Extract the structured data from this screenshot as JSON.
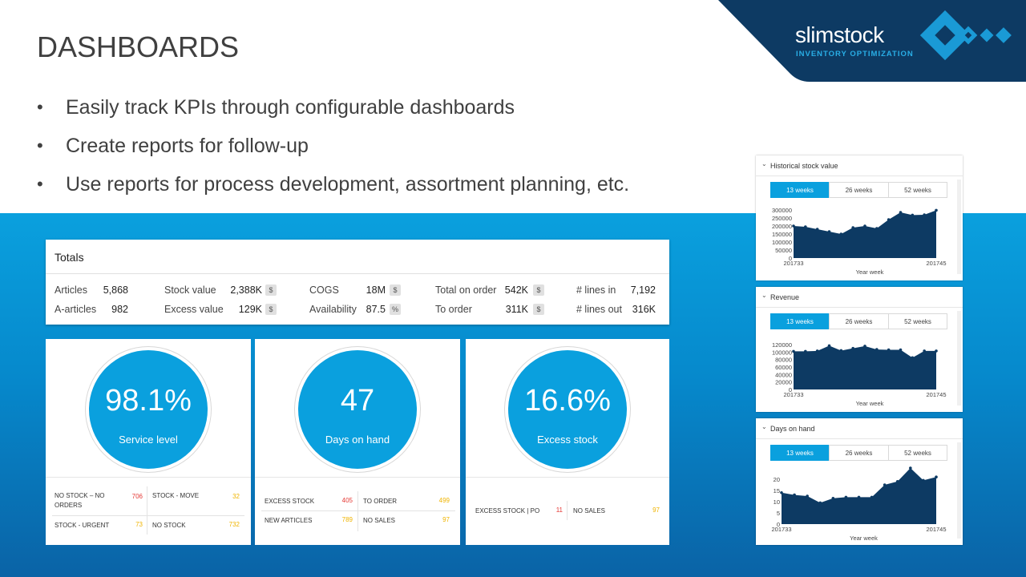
{
  "slide": {
    "title": "DASHBOARDS",
    "bullets": [
      "Easily track KPIs through configurable dashboards",
      "Create reports for follow-up",
      "Use reports for process development, assortment planning, etc."
    ]
  },
  "logo": {
    "name": "slimstock",
    "tagline": "INVENTORY OPTIMIZATION"
  },
  "colors": {
    "accent": "#0aa0de",
    "navy": "#0d3a63",
    "chart_fill": "#0d3a63",
    "red": "#e53935",
    "yellow": "#f0b400"
  },
  "totals": {
    "title": "Totals",
    "items": [
      {
        "label": "Articles",
        "value": "5,868",
        "unit": ""
      },
      {
        "label": "A-articles",
        "value": "982",
        "unit": ""
      },
      {
        "label": "Stock value",
        "value": "2,388K",
        "unit": "$"
      },
      {
        "label": "Excess value",
        "value": "129K",
        "unit": "$"
      },
      {
        "label": "COGS",
        "value": "18M",
        "unit": "$"
      },
      {
        "label": "Availability",
        "value": "87.5",
        "unit": "%"
      },
      {
        "label": "Total on order",
        "value": "542K",
        "unit": "$"
      },
      {
        "label": "To order",
        "value": "311K",
        "unit": "$"
      },
      {
        "label": "# lines in",
        "value": "7,192",
        "unit": ""
      },
      {
        "label": "# lines out",
        "value": "316K",
        "unit": ""
      }
    ]
  },
  "kpis": [
    {
      "value": "98.1%",
      "label": "Service level",
      "stats": [
        {
          "label": "NO STOCK – NO ORDERS",
          "value": "706",
          "color": "red"
        },
        {
          "label": "STOCK - MOVE",
          "value": "32",
          "color": "yellow"
        },
        {
          "label": "STOCK - URGENT",
          "value": "73",
          "color": "yellow"
        },
        {
          "label": "NO STOCK",
          "value": "732",
          "color": "yellow"
        }
      ]
    },
    {
      "value": "47",
      "label": "Days on hand",
      "stats": [
        {
          "label": "EXCESS STOCK",
          "value": "405",
          "color": "red"
        },
        {
          "label": "TO ORDER",
          "value": "499",
          "color": "yellow"
        },
        {
          "label": "NEW ARTICLES",
          "value": "789",
          "color": "yellow"
        },
        {
          "label": "NO SALES",
          "value": "97",
          "color": "yellow"
        }
      ]
    },
    {
      "value": "16.6%",
      "label": "Excess stock",
      "stats": [
        {
          "label": "EXCESS STOCK | PO",
          "value": "11",
          "color": "red"
        },
        {
          "label": "NO SALES",
          "value": "97",
          "color": "yellow"
        }
      ]
    }
  ],
  "segments": [
    "13 weeks",
    "26 weeks",
    "52 weeks"
  ],
  "chart_data": [
    {
      "type": "area",
      "title": "Historical stock value",
      "xlabel": "Year week",
      "x_tick_labels": [
        "201733",
        "201745"
      ],
      "y_ticks": [
        "300000",
        "250000",
        "200000",
        "150000",
        "100000",
        "50000",
        "0"
      ],
      "ylim": [
        0,
        300000
      ],
      "values": [
        200000,
        195000,
        180000,
        165000,
        150000,
        190000,
        200000,
        185000,
        240000,
        285000,
        268000,
        270000,
        298000
      ]
    },
    {
      "type": "area",
      "title": "Revenue",
      "xlabel": "Year week",
      "x_tick_labels": [
        "201733",
        "201745"
      ],
      "y_ticks": [
        "120000",
        "100000",
        "80000",
        "60000",
        "40000",
        "20000",
        "0"
      ],
      "ylim": [
        0,
        120000
      ],
      "values": [
        102000,
        102000,
        103000,
        117000,
        104000,
        110000,
        116000,
        107000,
        106000,
        106000,
        85000,
        103000,
        103000
      ]
    },
    {
      "type": "area",
      "title": "Days on hand",
      "xlabel": "Year week",
      "x_tick_labels": [
        "201733",
        "201745"
      ],
      "y_ticks": [
        "20",
        "15",
        "10",
        "5",
        "0"
      ],
      "ylim": [
        0,
        25
      ],
      "values": [
        14,
        13,
        12.5,
        9.5,
        11.5,
        12,
        12,
        12,
        17.5,
        19,
        25,
        19.5,
        21
      ]
    }
  ]
}
